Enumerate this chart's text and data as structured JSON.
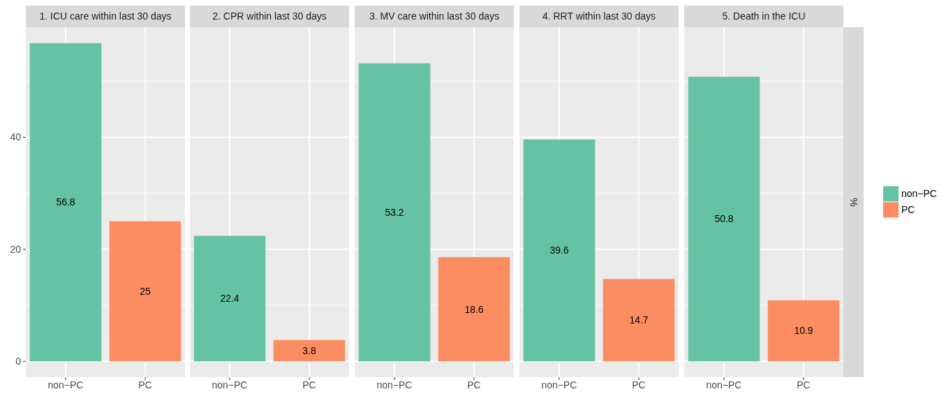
{
  "chart_data": [
    {
      "type": "bar",
      "title": "1. ICU care within last 30 days",
      "categories": [
        "non−PC",
        "PC"
      ],
      "series": [
        {
          "color": "#66c2a5",
          "values": [
            56.8,
            null
          ]
        },
        {
          "color": "#fc8d62",
          "values": [
            null,
            25
          ]
        }
      ],
      "data_labels": true,
      "ylim": [
        -2.84,
        59.64
      ],
      "yticks": [
        0,
        20,
        40
      ],
      "grid": true
    },
    {
      "type": "bar",
      "title": "2. CPR within last 30 days",
      "categories": [
        "non−PC",
        "PC"
      ],
      "series": [
        {
          "color": "#66c2a5",
          "values": [
            22.4,
            null
          ]
        },
        {
          "color": "#fc8d62",
          "values": [
            null,
            3.8
          ]
        }
      ],
      "data_labels": true,
      "ylim": [
        -2.84,
        59.64
      ],
      "yticks": [
        0,
        20,
        40
      ],
      "grid": true,
      "tick_labels": "x"
    },
    {
      "type": "bar",
      "title": "3. MV care within last 30 days",
      "categories": [
        "non−PC",
        "PC"
      ],
      "series": [
        {
          "color": "#66c2a5",
          "values": [
            53.2,
            null
          ]
        },
        {
          "color": "#fc8d62",
          "values": [
            null,
            18.6
          ]
        }
      ],
      "data_labels": true,
      "ylim": [
        -2.84,
        59.64
      ],
      "yticks": [
        0,
        20,
        40
      ],
      "grid": true,
      "tick_labels": "x"
    },
    {
      "type": "bar",
      "title": "4. RRT within last 30 days",
      "categories": [
        "non−PC",
        "PC"
      ],
      "series": [
        {
          "color": "#66c2a5",
          "values": [
            39.6,
            null
          ]
        },
        {
          "color": "#fc8d62",
          "values": [
            null,
            14.7
          ]
        }
      ],
      "data_labels": true,
      "ylim": [
        -2.84,
        59.64
      ],
      "yticks": [
        0,
        20,
        40
      ],
      "grid": true,
      "tick_labels": "x"
    },
    {
      "type": "bar",
      "title": "5. Death in the ICU",
      "categories": [
        "non−PC",
        "PC"
      ],
      "series": [
        {
          "name": "non−PC",
          "color": "#66c2a5",
          "values": [
            50.8,
            null
          ]
        },
        {
          "name": "PC",
          "color": "#fc8d62",
          "values": [
            null,
            10.9
          ]
        }
      ],
      "data_labels": true,
      "ylim": [
        -2.84,
        59.64
      ],
      "yticks": [
        0,
        20,
        40
      ],
      "grid": true,
      "tick_labels": "x",
      "ylabel": "%",
      "legend": "right"
    }
  ]
}
